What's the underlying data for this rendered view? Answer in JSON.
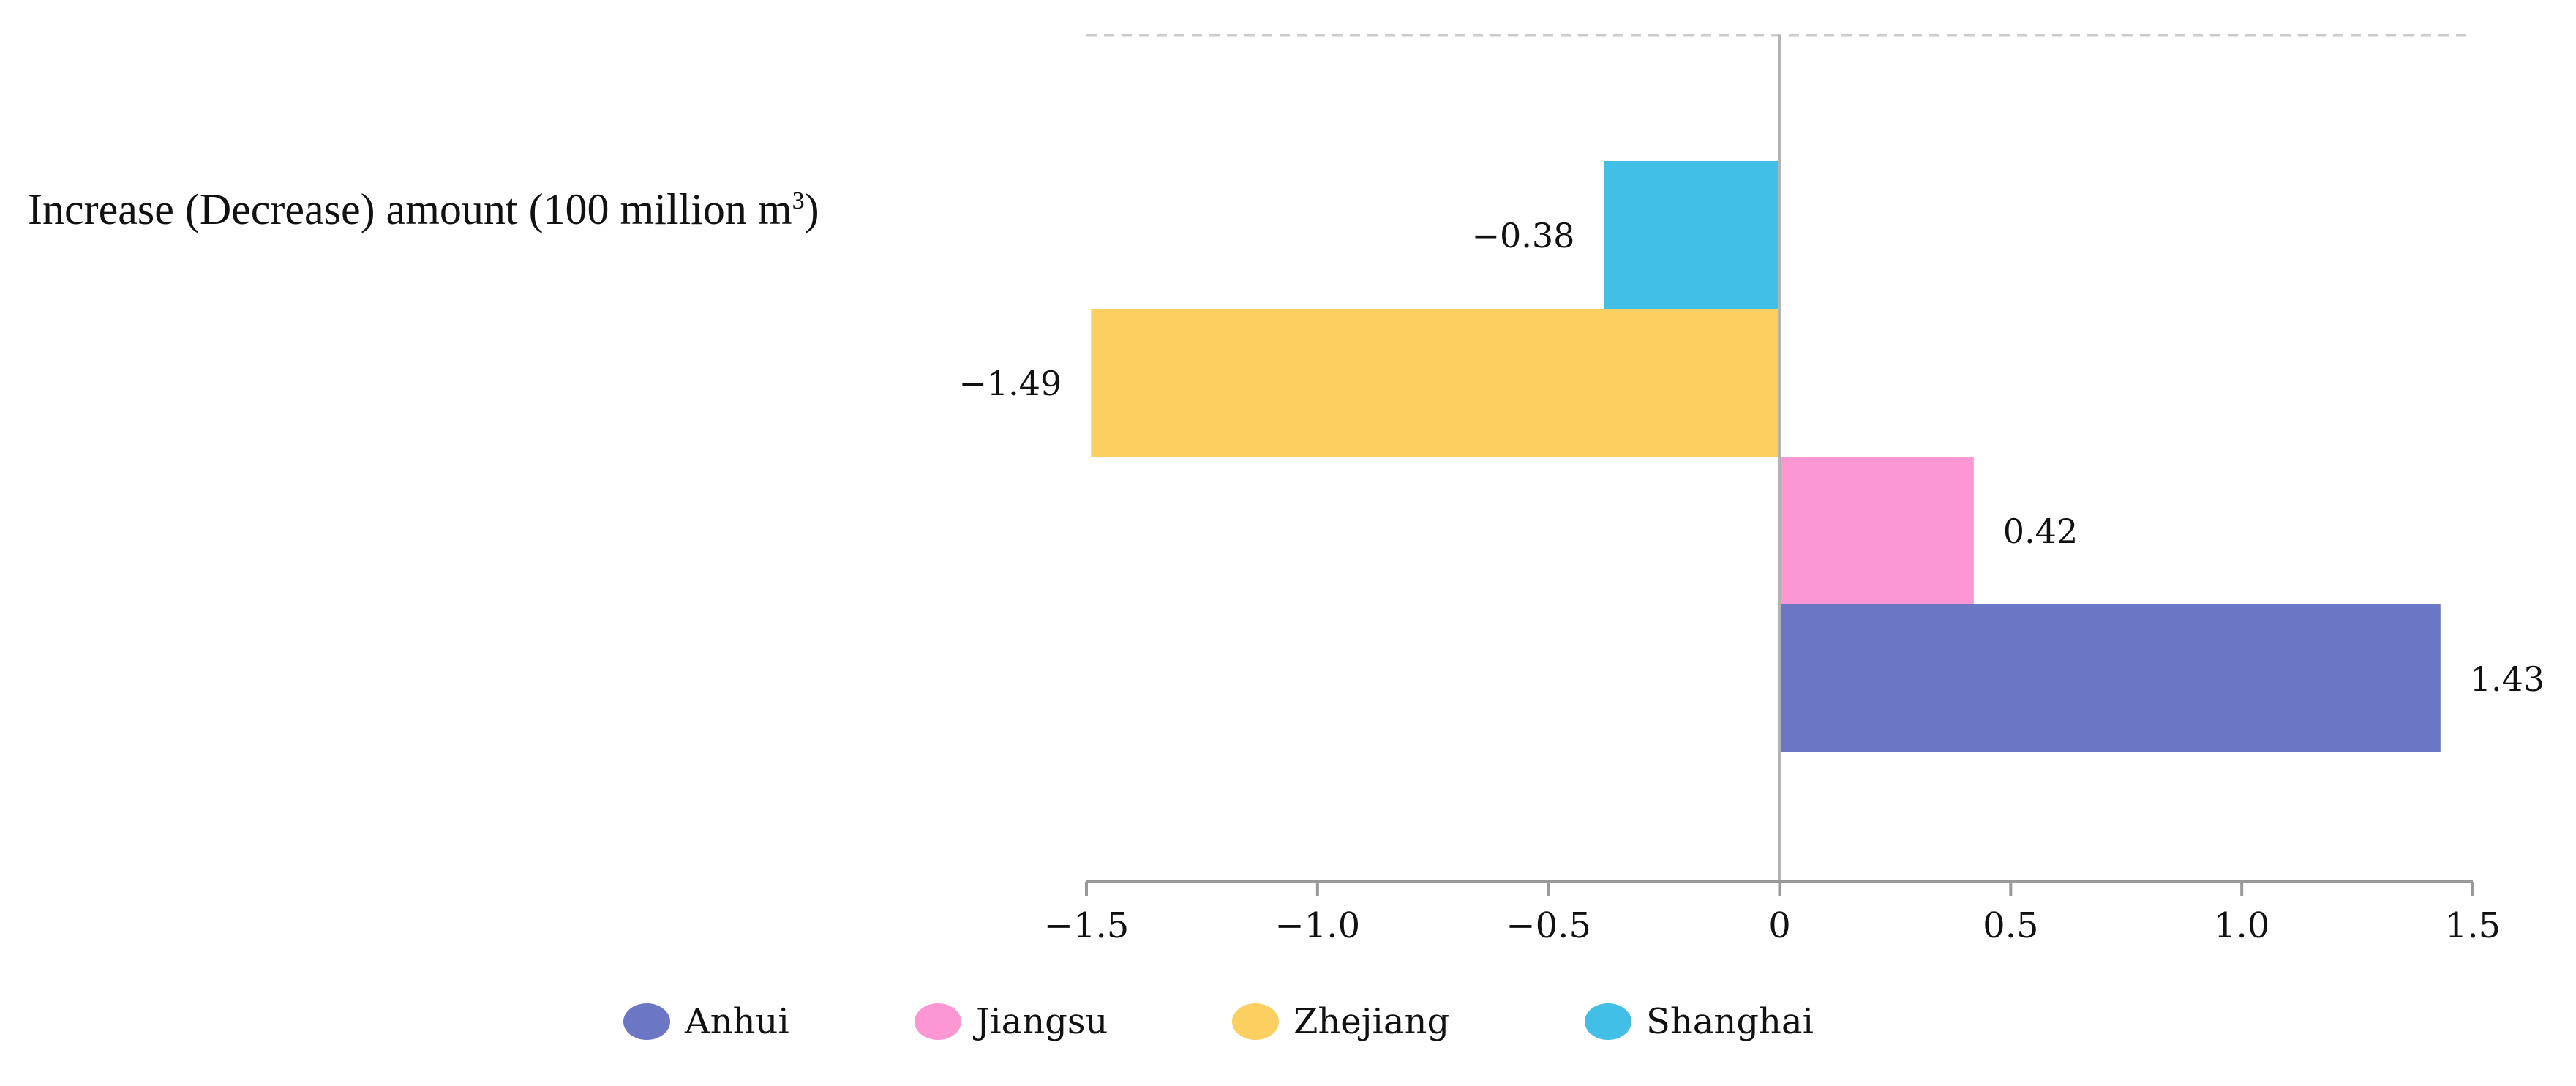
{
  "chart_data": {
    "type": "bar",
    "orientation": "horizontal",
    "ylabel": "Increase (Decrease) amount (100 million m",
    "ylabel_sup": "3",
    "ylabel_close": ")",
    "xlim": [
      -1.5,
      1.5
    ],
    "xticks": [
      -1.5,
      -1.0,
      -0.5,
      0,
      0.5,
      1.0,
      1.5
    ],
    "xtick_labels": [
      "−1.5",
      "−1.0",
      "−0.5",
      "0",
      "0.5",
      "1.0",
      "1.5"
    ],
    "grid": false,
    "series": [
      {
        "name": "Shanghai",
        "value": -0.38,
        "label": "−0.38",
        "color": "#42BFE6"
      },
      {
        "name": "Zhejiang",
        "value": -1.49,
        "label": "−1.49",
        "color": "#FBCF60"
      },
      {
        "name": "Jiangsu",
        "value": 0.42,
        "label": "0.42",
        "color": "#FD97D4"
      },
      {
        "name": "Anhui",
        "value": 1.43,
        "label": "1.43",
        "color": "#6B76C4"
      }
    ],
    "legend": [
      {
        "name": "Anhui",
        "color": "#6B76C4"
      },
      {
        "name": "Jiangsu",
        "color": "#FD97D4"
      },
      {
        "name": "Zhejiang",
        "color": "#FBCF60"
      },
      {
        "name": "Shanghai",
        "color": "#42BFE6"
      }
    ],
    "legend_position": "bottom"
  }
}
